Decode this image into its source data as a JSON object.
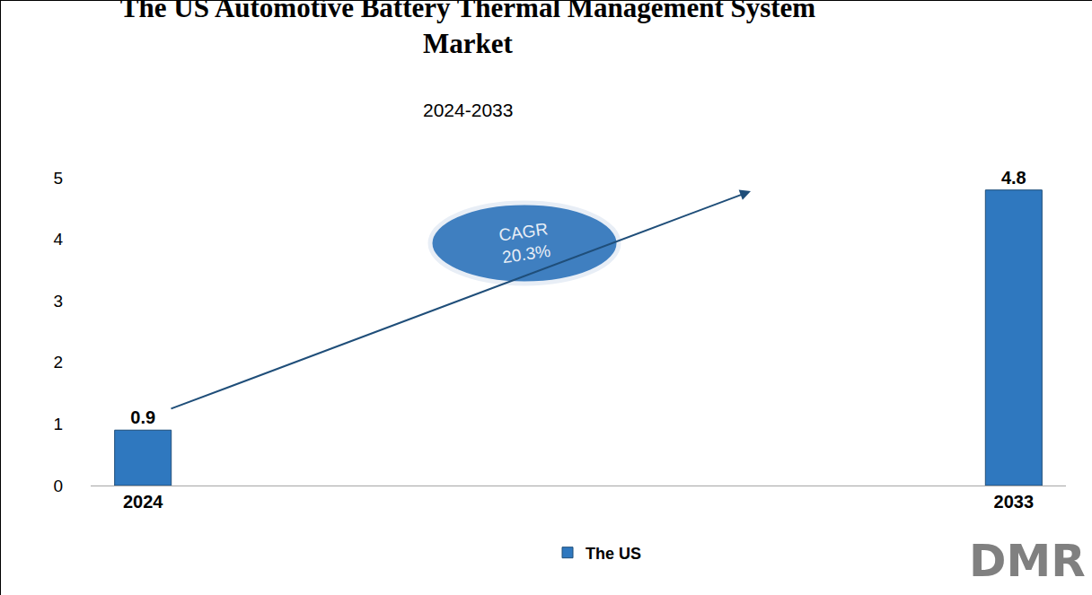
{
  "chart_data": {
    "type": "bar",
    "title": "The US Automotive Battery Thermal Management System Market",
    "subtitle": "2024-2033",
    "categories": [
      "2024",
      "2033"
    ],
    "series": [
      {
        "name": "The US",
        "color": "#2f78bf",
        "values": [
          0.9,
          4.8
        ]
      }
    ],
    "ylim": [
      0,
      5
    ],
    "yticks": [
      0,
      1,
      2,
      3,
      4,
      5
    ],
    "grid": false,
    "data_labels": true,
    "legend": "bottom",
    "annotations": [
      "CAGR 20.3%",
      "DMR"
    ]
  }
}
